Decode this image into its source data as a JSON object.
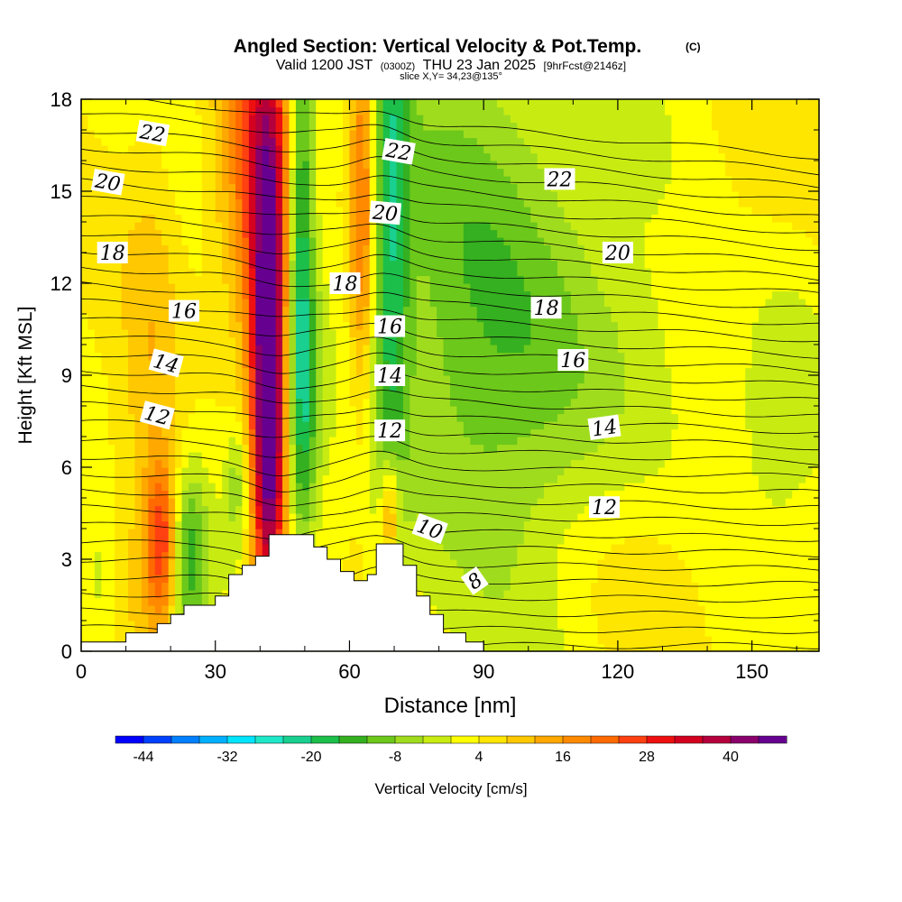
{
  "chart_data": {
    "type": "heatmap",
    "title": "Angled Section: Vertical Velocity & Pot.Temp.",
    "title_suffix": "(C)",
    "subtitle": {
      "valid": "Valid 1200 JST",
      "utc": "(0300Z)",
      "date": "THU 23 Jan 2025",
      "fcst": "[9hrFcst@2146z]"
    },
    "slice_label": "slice X,Y= 34,23@135°",
    "xlabel": "Distance [nm]",
    "ylabel": "Height [Kft MSL]",
    "xlim": [
      0,
      165
    ],
    "ylim": [
      0,
      18
    ],
    "xticks": [
      0,
      30,
      60,
      90,
      120,
      150
    ],
    "yticks": [
      0,
      3,
      6,
      9,
      12,
      15,
      18
    ],
    "colorbar": {
      "label": "Vertical Velocity [cm/s]",
      "ticks": [
        -44,
        -32,
        -20,
        -8,
        4,
        16,
        28,
        40
      ],
      "min": -48,
      "step": 4,
      "colors": [
        "#0000ff",
        "#0040ff",
        "#0080ff",
        "#00b0ff",
        "#00e5ff",
        "#1ee8c8",
        "#19d090",
        "#1cbf4a",
        "#35b020",
        "#6cc81a",
        "#a0dc1e",
        "#c8ec12",
        "#ffff00",
        "#ffe600",
        "#ffc800",
        "#ffa800",
        "#ff8a00",
        "#ff6a00",
        "#ff4010",
        "#ee1010",
        "#d40020",
        "#b4003c",
        "#8a006c",
        "#660090"
      ]
    },
    "terrain_profile": {
      "x": [
        0,
        10,
        10,
        17,
        17,
        20,
        20,
        23,
        23,
        30,
        30,
        33,
        33,
        36,
        36,
        39,
        39,
        42,
        42,
        52,
        52,
        55,
        55,
        58,
        58,
        61,
        61,
        64,
        64,
        66,
        66,
        72,
        72,
        75,
        75,
        78,
        78,
        81,
        81,
        86,
        86,
        90,
        90
      ],
      "height_kft": [
        0.3,
        0.3,
        0.6,
        0.6,
        0.9,
        0.9,
        1.2,
        1.2,
        1.5,
        1.5,
        1.8,
        1.8,
        2.5,
        2.5,
        2.8,
        2.8,
        3.1,
        3.1,
        3.8,
        3.8,
        3.4,
        3.4,
        3.0,
        3.0,
        2.6,
        2.6,
        2.3,
        2.3,
        2.5,
        2.5,
        3.5,
        3.5,
        2.8,
        2.8,
        1.8,
        1.8,
        1.2,
        1.2,
        0.6,
        0.6,
        0.3,
        0.3,
        0
      ]
    },
    "velocity_features": [
      {
        "x": 42,
        "z": 7.5,
        "sx": 2.5,
        "sz": 5.0,
        "amp": 34
      },
      {
        "x": 42,
        "z": 12,
        "sx": 3.5,
        "sz": 7.0,
        "amp": 22
      },
      {
        "x": 38,
        "z": 16,
        "sx": 6.0,
        "sz": 4.0,
        "amp": 18
      },
      {
        "x": 49,
        "z": 14,
        "sx": 2.2,
        "sz": 7.0,
        "amp": -24
      },
      {
        "x": 50,
        "z": 8,
        "sx": 3.0,
        "sz": 3.0,
        "amp": -10
      },
      {
        "x": 63,
        "z": 15,
        "sx": 2.2,
        "sz": 5.0,
        "amp": 22
      },
      {
        "x": 69,
        "z": 14,
        "sx": 3.0,
        "sz": 7.0,
        "amp": -18
      },
      {
        "x": 69,
        "z": 4.5,
        "sx": 1.5,
        "sz": 1.3,
        "amp": 18
      },
      {
        "x": 18,
        "z": 3.6,
        "sx": 2.5,
        "sz": 1.8,
        "amp": 22
      },
      {
        "x": 16,
        "z": 9,
        "sx": 5.0,
        "sz": 6.0,
        "amp": 8
      },
      {
        "x": 24,
        "z": 3.0,
        "sx": 3.0,
        "sz": 2.0,
        "amp": -18
      },
      {
        "x": 35,
        "z": 5.5,
        "sx": 2.0,
        "sz": 1.5,
        "amp": -10
      },
      {
        "x": 90,
        "z": 12,
        "sx": 20,
        "sz": 7.0,
        "amp": -12
      },
      {
        "x": 115,
        "z": 9,
        "sx": 20,
        "sz": 4.0,
        "amp": -5
      },
      {
        "x": 158,
        "z": 8,
        "sx": 8.0,
        "sz": 3.0,
        "amp": -7
      },
      {
        "x": 4,
        "z": 2.5,
        "sx": 3.0,
        "sz": 2.0,
        "amp": -6
      },
      {
        "x": 145,
        "z": 14,
        "sx": 10,
        "sz": 5.0,
        "amp": 4
      },
      {
        "x": 128,
        "z": 3,
        "sx": 18,
        "sz": 2.5,
        "amp": 3
      }
    ],
    "contour_labels": [
      {
        "text": "22",
        "x": 16,
        "z": 16.9,
        "angle": 10
      },
      {
        "text": "20",
        "x": 6,
        "z": 15.3,
        "angle": 10
      },
      {
        "text": "18",
        "x": 7,
        "z": 13.0,
        "angle": 0
      },
      {
        "text": "16",
        "x": 23,
        "z": 11.1,
        "angle": 0
      },
      {
        "text": "14",
        "x": 19,
        "z": 9.4,
        "angle": 15
      },
      {
        "text": "12",
        "x": 17,
        "z": 7.7,
        "angle": 15
      },
      {
        "text": "22",
        "x": 71,
        "z": 16.3,
        "angle": 10
      },
      {
        "text": "20",
        "x": 68,
        "z": 14.3,
        "angle": 5
      },
      {
        "text": "18",
        "x": 59,
        "z": 12.0,
        "angle": 0
      },
      {
        "text": "16",
        "x": 69,
        "z": 10.6,
        "angle": 0
      },
      {
        "text": "14",
        "x": 69,
        "z": 9.0,
        "angle": 0
      },
      {
        "text": "12",
        "x": 69,
        "z": 7.2,
        "angle": 0
      },
      {
        "text": "10",
        "x": 78,
        "z": 4.0,
        "angle": 20
      },
      {
        "text": "8",
        "x": 88,
        "z": 2.3,
        "angle": -35
      },
      {
        "text": "22",
        "x": 107,
        "z": 15.4,
        "angle": 0
      },
      {
        "text": "20",
        "x": 120,
        "z": 13.0,
        "angle": 0
      },
      {
        "text": "18",
        "x": 104,
        "z": 11.2,
        "angle": 0
      },
      {
        "text": "16",
        "x": 110,
        "z": 9.5,
        "angle": 0
      },
      {
        "text": "14",
        "x": 117,
        "z": 7.3,
        "angle": -8
      },
      {
        "text": "12",
        "x": 117,
        "z": 4.7,
        "angle": 0
      }
    ]
  }
}
